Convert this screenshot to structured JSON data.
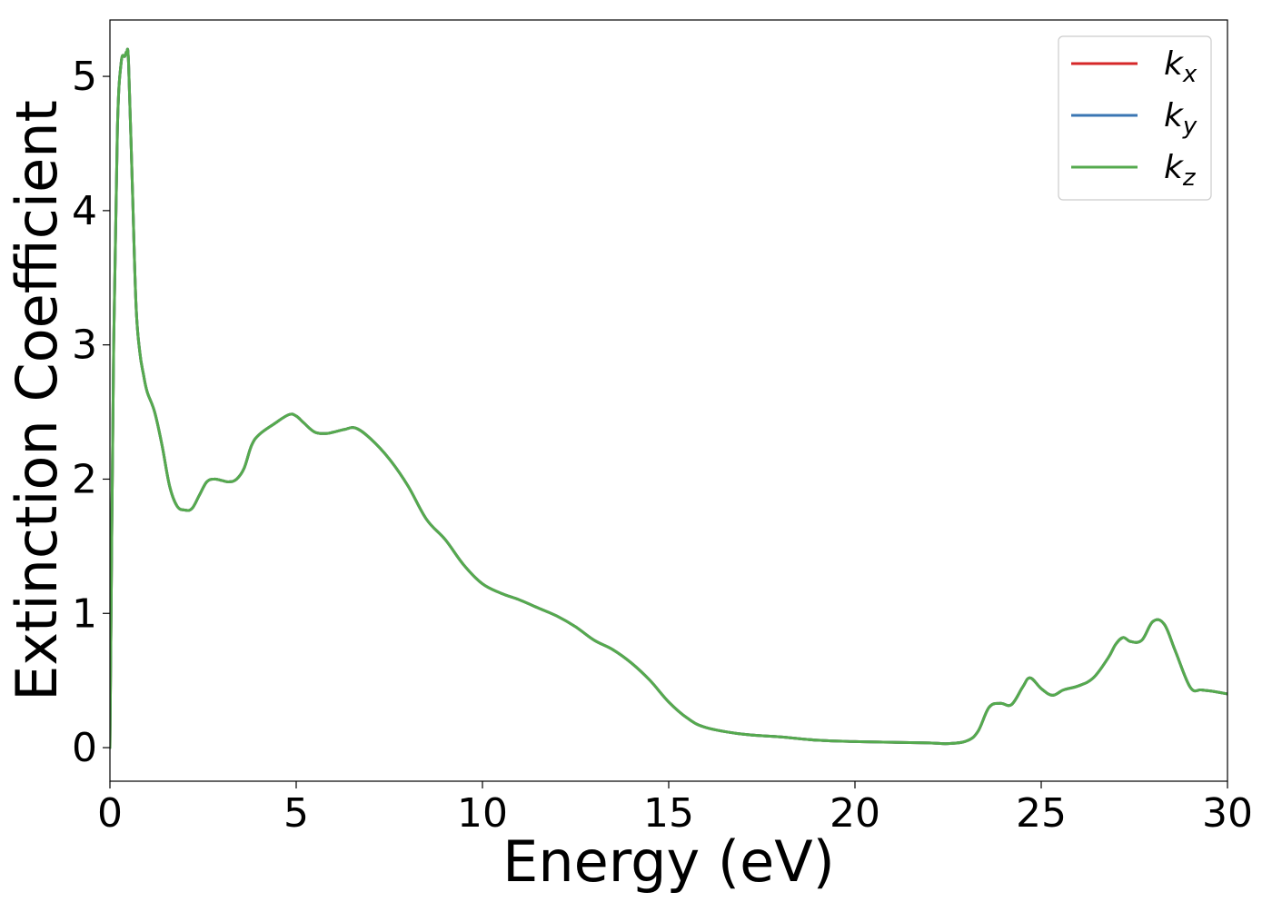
{
  "chart_data": {
    "type": "line",
    "title": "",
    "xlabel": "Energy (eV)",
    "ylabel": "Extinction Coefficient",
    "xlim": [
      0,
      30
    ],
    "ylim": [
      -0.25,
      5.42
    ],
    "xticks": [
      0,
      5,
      10,
      15,
      20,
      25,
      30
    ],
    "xtick_labels": [
      "0",
      "5",
      "10",
      "15",
      "20",
      "25",
      "30"
    ],
    "yticks": [
      0,
      1,
      2,
      3,
      4,
      5
    ],
    "ytick_labels": [
      "0",
      "1",
      "2",
      "3",
      "4",
      "5"
    ],
    "grid": false,
    "legend_position": "top-right",
    "x": [
      0.0,
      0.1,
      0.2,
      0.3,
      0.4,
      0.45,
      0.5,
      0.6,
      0.7,
      0.8,
      0.9,
      1.0,
      1.2,
      1.4,
      1.6,
      1.8,
      2.0,
      2.2,
      2.4,
      2.6,
      2.8,
      3.0,
      3.2,
      3.4,
      3.6,
      3.8,
      4.0,
      4.4,
      4.8,
      5.0,
      5.2,
      5.5,
      5.8,
      6.0,
      6.3,
      6.6,
      7.0,
      7.5,
      8.0,
      8.5,
      9.0,
      9.5,
      10.0,
      10.5,
      11.0,
      11.5,
      12.0,
      12.5,
      13.0,
      13.5,
      14.0,
      14.5,
      15.0,
      15.5,
      16.0,
      17.0,
      18.0,
      19.0,
      20.0,
      21.0,
      22.0,
      22.5,
      23.0,
      23.3,
      23.6,
      23.9,
      24.2,
      24.5,
      24.7,
      25.0,
      25.3,
      25.6,
      26.0,
      26.4,
      26.8,
      27.0,
      27.2,
      27.4,
      27.7,
      28.0,
      28.3,
      28.6,
      29.0,
      29.3,
      29.6,
      30.0
    ],
    "series": [
      {
        "name": "k_x",
        "color": "#d62728",
        "values": [
          0.0,
          3.0,
          4.6,
          5.1,
          5.15,
          5.18,
          5.1,
          4.2,
          3.3,
          2.95,
          2.78,
          2.65,
          2.5,
          2.25,
          1.95,
          1.8,
          1.77,
          1.78,
          1.88,
          1.98,
          2.0,
          1.99,
          1.98,
          2.0,
          2.08,
          2.25,
          2.33,
          2.41,
          2.48,
          2.47,
          2.42,
          2.35,
          2.34,
          2.35,
          2.37,
          2.38,
          2.3,
          2.15,
          1.95,
          1.7,
          1.55,
          1.36,
          1.22,
          1.15,
          1.1,
          1.04,
          0.98,
          0.9,
          0.8,
          0.73,
          0.63,
          0.5,
          0.34,
          0.22,
          0.15,
          0.1,
          0.08,
          0.055,
          0.045,
          0.04,
          0.035,
          0.03,
          0.05,
          0.12,
          0.3,
          0.33,
          0.32,
          0.45,
          0.52,
          0.44,
          0.39,
          0.43,
          0.46,
          0.52,
          0.67,
          0.77,
          0.82,
          0.79,
          0.8,
          0.94,
          0.92,
          0.72,
          0.45,
          0.43,
          0.42,
          0.4
        ]
      },
      {
        "name": "k_y",
        "color": "#3a76b3",
        "values": [
          0.0,
          3.0,
          4.6,
          5.1,
          5.15,
          5.18,
          5.1,
          4.2,
          3.3,
          2.95,
          2.78,
          2.65,
          2.5,
          2.25,
          1.95,
          1.8,
          1.77,
          1.78,
          1.88,
          1.98,
          2.0,
          1.99,
          1.98,
          2.0,
          2.08,
          2.25,
          2.33,
          2.41,
          2.48,
          2.47,
          2.42,
          2.35,
          2.34,
          2.35,
          2.37,
          2.38,
          2.3,
          2.15,
          1.95,
          1.7,
          1.55,
          1.36,
          1.22,
          1.15,
          1.1,
          1.04,
          0.98,
          0.9,
          0.8,
          0.73,
          0.63,
          0.5,
          0.34,
          0.22,
          0.15,
          0.1,
          0.08,
          0.055,
          0.045,
          0.04,
          0.035,
          0.03,
          0.05,
          0.12,
          0.3,
          0.33,
          0.32,
          0.45,
          0.52,
          0.44,
          0.39,
          0.43,
          0.46,
          0.52,
          0.67,
          0.77,
          0.82,
          0.79,
          0.8,
          0.94,
          0.92,
          0.72,
          0.45,
          0.43,
          0.42,
          0.4
        ]
      },
      {
        "name": "k_z",
        "color": "#55aa4e",
        "values": [
          0.0,
          3.0,
          4.6,
          5.1,
          5.15,
          5.18,
          5.1,
          4.2,
          3.3,
          2.95,
          2.78,
          2.65,
          2.5,
          2.25,
          1.95,
          1.8,
          1.77,
          1.78,
          1.88,
          1.98,
          2.0,
          1.99,
          1.98,
          2.0,
          2.08,
          2.25,
          2.33,
          2.41,
          2.48,
          2.47,
          2.42,
          2.35,
          2.34,
          2.35,
          2.37,
          2.38,
          2.3,
          2.15,
          1.95,
          1.7,
          1.55,
          1.36,
          1.22,
          1.15,
          1.1,
          1.04,
          0.98,
          0.9,
          0.8,
          0.73,
          0.63,
          0.5,
          0.34,
          0.22,
          0.15,
          0.1,
          0.08,
          0.055,
          0.045,
          0.04,
          0.035,
          0.03,
          0.05,
          0.12,
          0.3,
          0.33,
          0.32,
          0.45,
          0.52,
          0.44,
          0.39,
          0.43,
          0.46,
          0.52,
          0.67,
          0.77,
          0.82,
          0.79,
          0.8,
          0.94,
          0.92,
          0.72,
          0.45,
          0.43,
          0.42,
          0.4
        ]
      }
    ],
    "legend": [
      {
        "base": "k",
        "sub": "x",
        "color": "#d62728"
      },
      {
        "base": "k",
        "sub": "y",
        "color": "#3a76b3"
      },
      {
        "base": "k",
        "sub": "z",
        "color": "#55aa4e"
      }
    ]
  }
}
